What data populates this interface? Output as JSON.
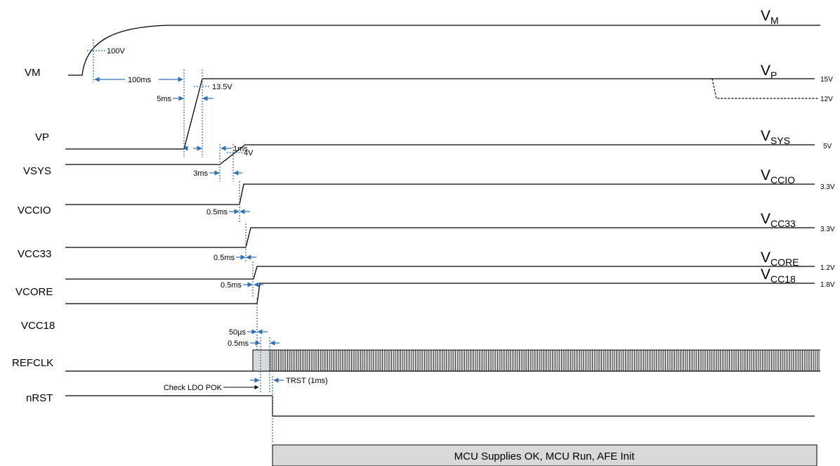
{
  "signals": [
    "VM",
    "VP",
    "VSYS",
    "VCCIO",
    "VCC33",
    "VCORE",
    "VCC18",
    "REFCLK",
    "nRST"
  ],
  "rails": [
    {
      "main": "V",
      "sub": "M",
      "level": ""
    },
    {
      "main": "V",
      "sub": "P",
      "level": "15V"
    },
    {
      "main": "V",
      "sub": "SYS",
      "level": "5V"
    },
    {
      "main": "V",
      "sub": "CCIO",
      "level": "3.3V"
    },
    {
      "main": "V",
      "sub": "CC33",
      "level": "3.3V"
    },
    {
      "main": "V",
      "sub": "CORE",
      "level": "1.2V"
    },
    {
      "main": "V",
      "sub": "CC18",
      "level": "1.8V"
    }
  ],
  "vp_alt_level": "12V",
  "thresholds": {
    "vm": "100V",
    "vp": "13.5V",
    "vsys": "4V"
  },
  "delays": {
    "vm_to_vp": "100ms",
    "vp_ramp": "5ms",
    "vp_to_vsys": "1ms",
    "vsys_ramp": "3ms",
    "vccio": "0.5ms",
    "vcc33": "0.5ms",
    "vcore": "0.5ms",
    "vcc18": "50µs",
    "refclk": "0.5ms"
  },
  "check_ldo": "Check LDO POK",
  "trst": "TRST (1ms)",
  "banner": "MCU Supplies OK, MCU Run, AFE Init",
  "colors": {
    "line": "#000000",
    "marker": "#2e6fb5",
    "banner_fill": "#d9d9d9"
  }
}
